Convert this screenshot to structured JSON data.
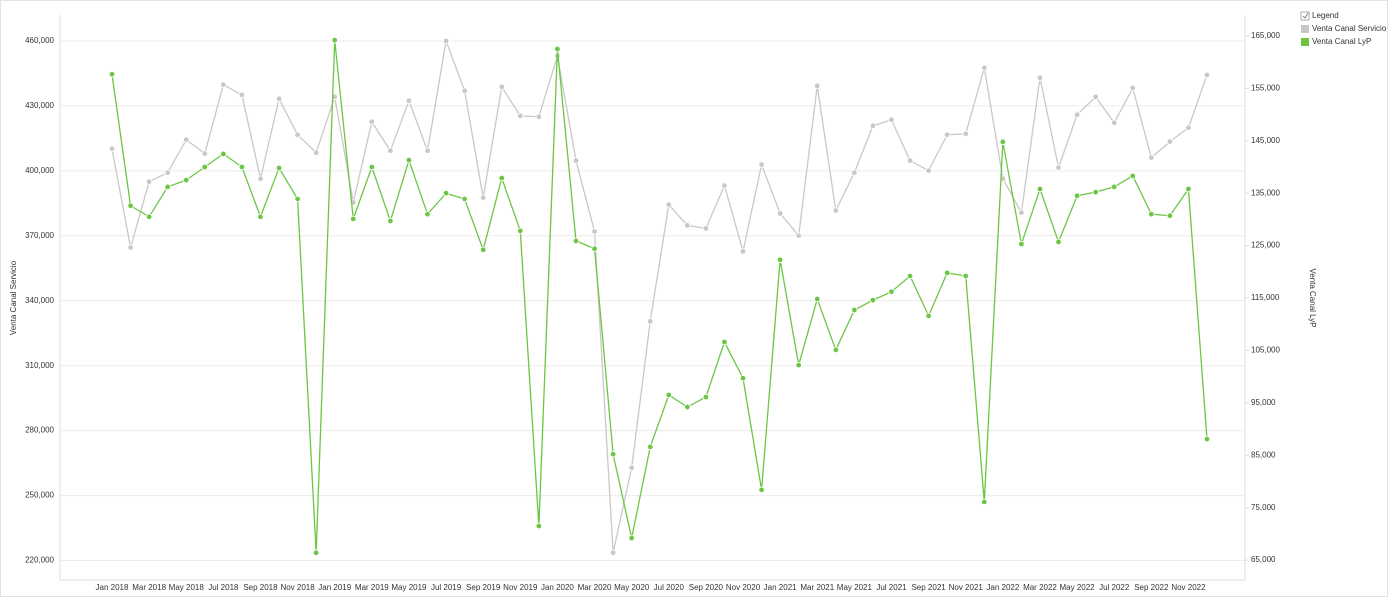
{
  "chart_data": {
    "type": "line",
    "legend_title": "Legend",
    "legend": "top-right",
    "ylabel": "Venta Canal Servicio",
    "y2label": "Venta Canal LyP",
    "categories": [
      "Jan 2018",
      null,
      "Mar 2018",
      null,
      "May 2018",
      null,
      "Jul 2018",
      null,
      "Sep 2018",
      null,
      "Nov 2018",
      null,
      "Jan 2019",
      null,
      "Mar 2019",
      null,
      "May 2019",
      null,
      "Jul 2019",
      null,
      "Sep 2019",
      null,
      "Nov 2019",
      null,
      "Jan 2020",
      null,
      "Mar 2020",
      null,
      "May 2020",
      null,
      "Jul 2020",
      null,
      "Sep 2020",
      null,
      "Nov 2020",
      null,
      "Jan 2021",
      null,
      "Mar 2021",
      null,
      "May 2021",
      null,
      "Jul 2021",
      null,
      "Sep 2021",
      null,
      "Nov 2021",
      null,
      "Jan 2022",
      null,
      "Mar 2022",
      null,
      "May 2022",
      null,
      "Jul 2022",
      null,
      "Sep 2022",
      null,
      "Nov 2022",
      null
    ],
    "series": [
      {
        "name": "Venta Canal Servicio",
        "color": "#c8c8c8",
        "axis": "y",
        "values": [
          410200,
          364600,
          395000,
          399200,
          414400,
          408000,
          439800,
          435100,
          396400,
          433300,
          416700,
          408400,
          434200,
          385400,
          422700,
          409300,
          432400,
          409300,
          460000,
          437000,
          387600,
          438800,
          425400,
          425000,
          453100,
          404700,
          372000,
          223600,
          262800,
          330500,
          384400,
          374800,
          373400,
          393200,
          362800,
          402900,
          380300,
          370100,
          439300,
          381700,
          399200,
          420800,
          423600,
          404700,
          400100,
          416700,
          417100,
          447600,
          396400,
          380700,
          443000,
          401500,
          425900,
          434200,
          422200,
          438300,
          406100,
          413500,
          419900,
          444300
        ]
      },
      {
        "name": "Venta Canal LyP",
        "color": "#6cc644",
        "axis": "y2",
        "values": [
          157700,
          132600,
          130500,
          136200,
          137500,
          140000,
          142500,
          140000,
          130500,
          139800,
          133900,
          66400,
          164200,
          130100,
          140000,
          129700,
          141300,
          131000,
          135000,
          133900,
          124200,
          137900,
          127800,
          71500,
          162500,
          125900,
          124400,
          85200,
          69200,
          86600,
          96500,
          94200,
          96100,
          106600,
          99700,
          78400,
          122300,
          102200,
          114800,
          105100,
          112700,
          114600,
          116200,
          119200,
          111600,
          119800,
          119200,
          76100,
          144800,
          125300,
          135800,
          125700,
          134500,
          135200,
          136200,
          138300,
          131000,
          130700,
          135800,
          88100
        ]
      }
    ],
    "ylim": [
      211000,
      472000
    ],
    "yticks": [
      {
        "value": 220000,
        "label": "220,000"
      },
      {
        "value": 250000,
        "label": "250,000"
      },
      {
        "value": 280000,
        "label": "280,000"
      },
      {
        "value": 310000,
        "label": "310,000"
      },
      {
        "value": 340000,
        "label": "340,000"
      },
      {
        "value": 370000,
        "label": "370,000"
      },
      {
        "value": 400000,
        "label": "400,000"
      },
      {
        "value": 430000,
        "label": "430,000"
      },
      {
        "value": 460000,
        "label": "460,000"
      }
    ],
    "y2lim": [
      61200,
      169000
    ],
    "y2ticks": [
      {
        "value": 65000,
        "label": "65,000"
      },
      {
        "value": 75000,
        "label": "75,000"
      },
      {
        "value": 85000,
        "label": "85,000"
      },
      {
        "value": 95000,
        "label": "95,000"
      },
      {
        "value": 105000,
        "label": "105,000"
      },
      {
        "value": 115000,
        "label": "115,000"
      },
      {
        "value": 125000,
        "label": "125,000"
      },
      {
        "value": 135000,
        "label": "135,000"
      },
      {
        "value": 145000,
        "label": "145,000"
      },
      {
        "value": 155000,
        "label": "155,000"
      },
      {
        "value": 165000,
        "label": "165,000"
      }
    ],
    "grid": true
  }
}
